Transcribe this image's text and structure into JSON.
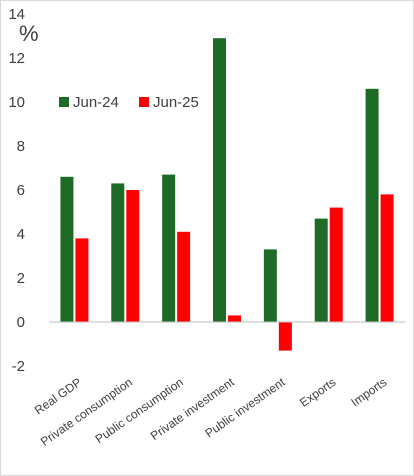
{
  "chart_data": {
    "type": "bar",
    "unit_label": "%",
    "categories": [
      "Real GDP",
      "Private consumption",
      "Public consumption",
      "Private investment",
      "Public investment",
      "Exports",
      "Imports"
    ],
    "series": [
      {
        "name": "Jun-24",
        "color": "#1e6b27",
        "values": [
          6.6,
          6.3,
          6.7,
          12.9,
          3.3,
          4.7,
          10.6
        ]
      },
      {
        "name": "Jun-25",
        "color": "#ff0000",
        "values": [
          3.8,
          6.0,
          4.1,
          0.3,
          -1.3,
          5.2,
          5.8
        ]
      }
    ],
    "ylim": [
      -2,
      14
    ],
    "yticks": [
      -2,
      0,
      2,
      4,
      6,
      8,
      10,
      12,
      14
    ],
    "grid": false,
    "legend_position": "top-left"
  }
}
